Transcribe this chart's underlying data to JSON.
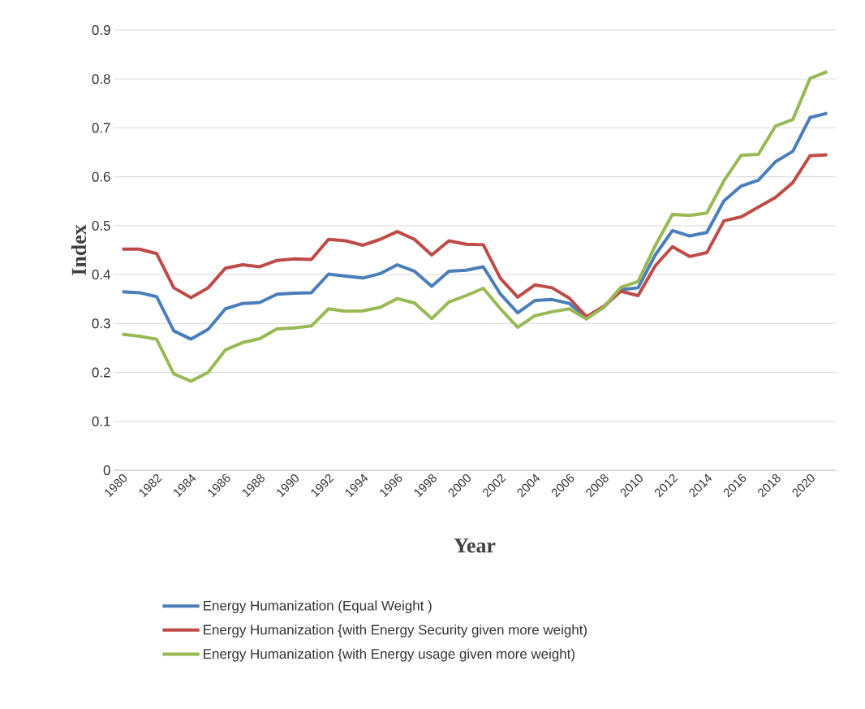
{
  "chart_data": {
    "type": "line",
    "xlabel": "Year",
    "ylabel": "Index",
    "x": [
      1980,
      1981,
      1982,
      1983,
      1984,
      1985,
      1986,
      1987,
      1988,
      1989,
      1990,
      1991,
      1992,
      1993,
      1994,
      1995,
      1996,
      1997,
      1998,
      1999,
      2000,
      2001,
      2002,
      2003,
      2004,
      2005,
      2006,
      2007,
      2008,
      2009,
      2010,
      2011,
      2012,
      2013,
      2014,
      2015,
      2016,
      2017,
      2018,
      2019,
      2020,
      2021
    ],
    "series": [
      {
        "name": "Energy Humanization (Equal Weight )",
        "color": "#4a7ebb",
        "values": [
          0.365,
          0.363,
          0.355,
          0.285,
          0.268,
          0.288,
          0.33,
          0.341,
          0.343,
          0.36,
          0.362,
          0.363,
          0.401,
          0.397,
          0.393,
          0.402,
          0.42,
          0.407,
          0.376,
          0.407,
          0.409,
          0.416,
          0.36,
          0.322,
          0.347,
          0.349,
          0.341,
          0.312,
          0.333,
          0.369,
          0.373,
          0.44,
          0.49,
          0.479,
          0.486,
          0.551,
          0.581,
          0.593,
          0.631,
          0.652,
          0.721,
          0.73
        ]
      },
      {
        "name": "Energy Humanization {with Energy Security given more weight)",
        "color": "#be4b48",
        "values": [
          0.452,
          0.452,
          0.443,
          0.373,
          0.353,
          0.373,
          0.413,
          0.42,
          0.416,
          0.429,
          0.432,
          0.431,
          0.472,
          0.469,
          0.46,
          0.472,
          0.488,
          0.472,
          0.44,
          0.469,
          0.462,
          0.461,
          0.392,
          0.354,
          0.379,
          0.373,
          0.352,
          0.314,
          0.335,
          0.366,
          0.357,
          0.418,
          0.457,
          0.437,
          0.445,
          0.51,
          0.518,
          0.538,
          0.558,
          0.588,
          0.643,
          0.645
        ]
      },
      {
        "name": "Energy Humanization {with Energy usage given more weight)",
        "color": "#98b954",
        "values": [
          0.278,
          0.274,
          0.268,
          0.197,
          0.182,
          0.2,
          0.246,
          0.261,
          0.269,
          0.289,
          0.291,
          0.295,
          0.33,
          0.325,
          0.326,
          0.333,
          0.351,
          0.342,
          0.31,
          0.344,
          0.357,
          0.372,
          0.33,
          0.292,
          0.316,
          0.324,
          0.33,
          0.309,
          0.333,
          0.374,
          0.386,
          0.459,
          0.523,
          0.521,
          0.526,
          0.592,
          0.644,
          0.646,
          0.704,
          0.717,
          0.801,
          0.815
        ]
      }
    ],
    "xlim": [
      1979.5,
      2021.5
    ],
    "xticks": [
      1980,
      1982,
      1984,
      1986,
      1988,
      1990,
      1992,
      1994,
      1996,
      1998,
      2000,
      2002,
      2004,
      2006,
      2008,
      2010,
      2012,
      2014,
      2016,
      2018,
      2020
    ],
    "ylim": [
      0,
      0.9
    ],
    "yticks": [
      0,
      0.1,
      0.2,
      0.3,
      0.4,
      0.5,
      0.6,
      0.7,
      0.8,
      0.9
    ],
    "grid": "y",
    "legend": "bottom",
    "line_style": "solid"
  }
}
